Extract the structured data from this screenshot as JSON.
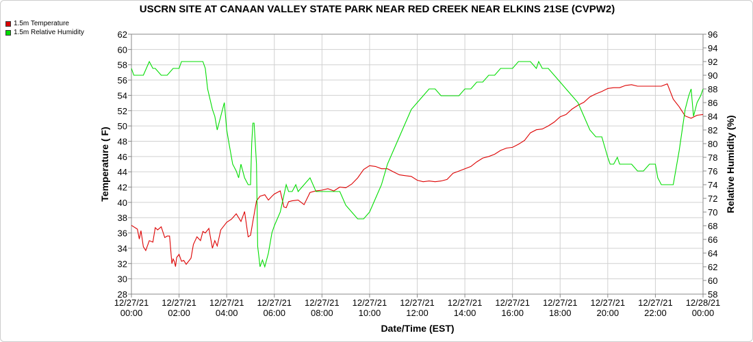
{
  "chart_data": {
    "type": "line",
    "title": "USCRN SITE AT CANAAN VALLEY STATE PARK NEAR RED CREEK NEAR ELKINS 21SE (CVPW2)",
    "xlabel": "Date/Time (EST)",
    "ylabel": "Temperature ( F)",
    "ylabel_right": "Relative Humidity (%)",
    "x_ticks": [
      [
        "12/27/21",
        "00:00"
      ],
      [
        "12/27/21",
        "02:00"
      ],
      [
        "12/27/21",
        "04:00"
      ],
      [
        "12/27/21",
        "06:00"
      ],
      [
        "12/27/21",
        "08:00"
      ],
      [
        "12/27/21",
        "10:00"
      ],
      [
        "12/27/21",
        "12:00"
      ],
      [
        "12/27/21",
        "14:00"
      ],
      [
        "12/27/21",
        "16:00"
      ],
      [
        "12/27/21",
        "18:00"
      ],
      [
        "12/27/21",
        "20:00"
      ],
      [
        "12/27/21",
        "22:00"
      ],
      [
        "12/28/21",
        "00:00"
      ]
    ],
    "xlim_hours": [
      0,
      24
    ],
    "ylim": [
      28,
      62
    ],
    "y_ticks": [
      28,
      30,
      32,
      34,
      36,
      38,
      40,
      42,
      44,
      46,
      48,
      50,
      52,
      54,
      56,
      58,
      60,
      62
    ],
    "ylim_right": [
      58,
      96
    ],
    "y_ticks_right": [
      58,
      60,
      62,
      64,
      66,
      68,
      70,
      72,
      74,
      76,
      78,
      80,
      82,
      84,
      86,
      88,
      90,
      92,
      94,
      96
    ],
    "grid": true,
    "legend_position": "top-left",
    "series": [
      {
        "name": "1.5m Temperature",
        "color": "#dd0000",
        "axis": "left",
        "x": [
          0,
          0.25,
          0.33,
          0.4,
          0.5,
          0.6,
          0.75,
          0.9,
          1.0,
          1.1,
          1.25,
          1.4,
          1.5,
          1.6,
          1.7,
          1.75,
          1.8,
          1.85,
          1.9,
          2.0,
          2.1,
          2.2,
          2.3,
          2.5,
          2.6,
          2.75,
          2.9,
          3.0,
          3.1,
          3.25,
          3.4,
          3.5,
          3.6,
          3.75,
          3.9,
          4.0,
          4.2,
          4.4,
          4.6,
          4.75,
          4.9,
          5.0,
          5.1,
          5.25,
          5.4,
          5.6,
          5.75,
          5.9,
          6.0,
          6.25,
          6.4,
          6.5,
          6.6,
          6.75,
          7.0,
          7.25,
          7.5,
          7.75,
          8.0,
          8.25,
          8.5,
          8.75,
          9.0,
          9.25,
          9.5,
          9.75,
          10.0,
          10.25,
          10.5,
          10.75,
          11.0,
          11.25,
          11.5,
          11.75,
          12.0,
          12.25,
          12.5,
          12.75,
          13.0,
          13.25,
          13.5,
          13.75,
          14.0,
          14.25,
          14.5,
          14.75,
          15.0,
          15.25,
          15.5,
          15.75,
          16.0,
          16.25,
          16.5,
          16.75,
          17.0,
          17.25,
          17.5,
          17.75,
          18.0,
          18.25,
          18.5,
          18.75,
          19.0,
          19.25,
          19.5,
          19.75,
          20.0,
          20.25,
          20.5,
          20.75,
          21.0,
          21.25,
          21.5,
          21.75,
          22.0,
          22.25,
          22.5,
          22.75,
          23.0,
          23.25,
          23.5,
          23.75,
          24.0
        ],
        "values": [
          37.0,
          36.5,
          35.2,
          36.3,
          34.2,
          33.7,
          35.0,
          34.8,
          36.7,
          36.4,
          36.8,
          35.4,
          35.6,
          35.6,
          32.0,
          32.6,
          32.3,
          31.6,
          32.8,
          33.2,
          32.3,
          32.4,
          31.9,
          32.7,
          34.5,
          35.5,
          35.0,
          36.2,
          36.0,
          36.6,
          34.0,
          35.0,
          34.3,
          36.4,
          37.0,
          37.4,
          37.8,
          38.5,
          37.5,
          38.8,
          35.5,
          35.7,
          37.5,
          40.2,
          40.8,
          41.0,
          40.3,
          40.8,
          41.1,
          41.5,
          39.4,
          39.3,
          40.1,
          40.2,
          40.3,
          39.7,
          41.3,
          41.5,
          41.6,
          41.8,
          41.5,
          42.0,
          41.9,
          42.4,
          43.2,
          44.3,
          44.8,
          44.7,
          44.4,
          44.4,
          44.0,
          43.6,
          43.5,
          43.4,
          42.9,
          42.7,
          42.8,
          42.7,
          42.8,
          43.0,
          43.8,
          44.1,
          44.4,
          44.7,
          45.3,
          45.8,
          46.0,
          46.3,
          46.8,
          47.1,
          47.2,
          47.6,
          48.1,
          49.1,
          49.5,
          49.6,
          50.0,
          50.5,
          51.2,
          51.5,
          52.2,
          52.7,
          53.1,
          53.8,
          54.2,
          54.5,
          54.9,
          55.0,
          55.0,
          55.3,
          55.4,
          55.2,
          55.2,
          55.2,
          55.2,
          55.2,
          55.5,
          53.5,
          52.5,
          51.3,
          51.0,
          51.4,
          51.5
        ]
      },
      {
        "name": "1.5m Relative Humidity",
        "color": "#00dd00",
        "axis": "right",
        "x": [
          0,
          0.1,
          0.25,
          0.5,
          0.75,
          0.9,
          1.0,
          1.25,
          1.5,
          1.75,
          2.0,
          2.1,
          2.25,
          2.5,
          2.75,
          3.0,
          3.1,
          3.2,
          3.4,
          3.5,
          3.6,
          3.75,
          3.9,
          4.0,
          4.1,
          4.25,
          4.4,
          4.5,
          4.6,
          4.75,
          4.9,
          5.0,
          5.05,
          5.1,
          5.15,
          5.25,
          5.3,
          5.4,
          5.5,
          5.6,
          5.75,
          5.9,
          6.0,
          6.25,
          6.5,
          6.6,
          6.75,
          6.9,
          7.0,
          7.25,
          7.5,
          7.75,
          8.0,
          8.25,
          8.5,
          8.75,
          9.0,
          9.25,
          9.5,
          9.75,
          10.0,
          10.25,
          10.5,
          10.75,
          11.0,
          11.25,
          11.5,
          11.75,
          12.0,
          12.25,
          12.5,
          12.75,
          13.0,
          13.25,
          13.5,
          13.75,
          14.0,
          14.25,
          14.5,
          14.75,
          15.0,
          15.25,
          15.5,
          15.75,
          16.0,
          16.25,
          16.5,
          16.75,
          17.0,
          17.1,
          17.25,
          17.5,
          17.75,
          18.0,
          18.25,
          18.5,
          18.75,
          19.0,
          19.25,
          19.5,
          19.75,
          20.0,
          20.1,
          20.25,
          20.4,
          20.5,
          20.75,
          21.0,
          21.25,
          21.5,
          21.75,
          22.0,
          22.1,
          22.25,
          22.5,
          22.75,
          23.0,
          23.25,
          23.4,
          23.5,
          23.6,
          23.75,
          23.9,
          24.0
        ],
        "values": [
          91.0,
          90.0,
          90.0,
          90.0,
          92.0,
          91.0,
          91.0,
          90.0,
          90.0,
          91.0,
          91.0,
          92.0,
          92.0,
          92.0,
          92.0,
          92.0,
          91.0,
          88.0,
          85.0,
          84.0,
          82.0,
          84.0,
          86.0,
          82.0,
          80.0,
          77.0,
          76.0,
          75.0,
          77.0,
          75.0,
          74.0,
          74.0,
          80.0,
          83.0,
          83.0,
          77.0,
          65.0,
          62.0,
          63.0,
          62.0,
          64.0,
          67.0,
          68.0,
          70.0,
          74.0,
          73.0,
          73.0,
          74.0,
          73.0,
          74.0,
          75.0,
          73.0,
          73.0,
          73.0,
          73.0,
          73.0,
          71.0,
          70.0,
          69.0,
          69.0,
          70.0,
          72.0,
          74.0,
          77.0,
          79.0,
          81.0,
          83.0,
          85.0,
          86.0,
          87.0,
          88.0,
          88.0,
          87.0,
          87.0,
          87.0,
          87.0,
          88.0,
          88.0,
          89.0,
          89.0,
          90.0,
          90.0,
          91.0,
          91.0,
          91.0,
          92.0,
          92.0,
          92.0,
          91.0,
          92.0,
          91.0,
          91.0,
          90.0,
          89.0,
          88.0,
          87.0,
          86.0,
          84.0,
          82.0,
          81.0,
          81.0,
          78.0,
          77.0,
          77.0,
          78.0,
          77.0,
          77.0,
          77.0,
          76.0,
          76.0,
          77.0,
          77.0,
          75.0,
          74.0,
          74.0,
          74.0,
          79.0,
          85.0,
          87.0,
          88.0,
          84.0,
          86.0,
          87.0,
          88.0
        ]
      }
    ]
  }
}
